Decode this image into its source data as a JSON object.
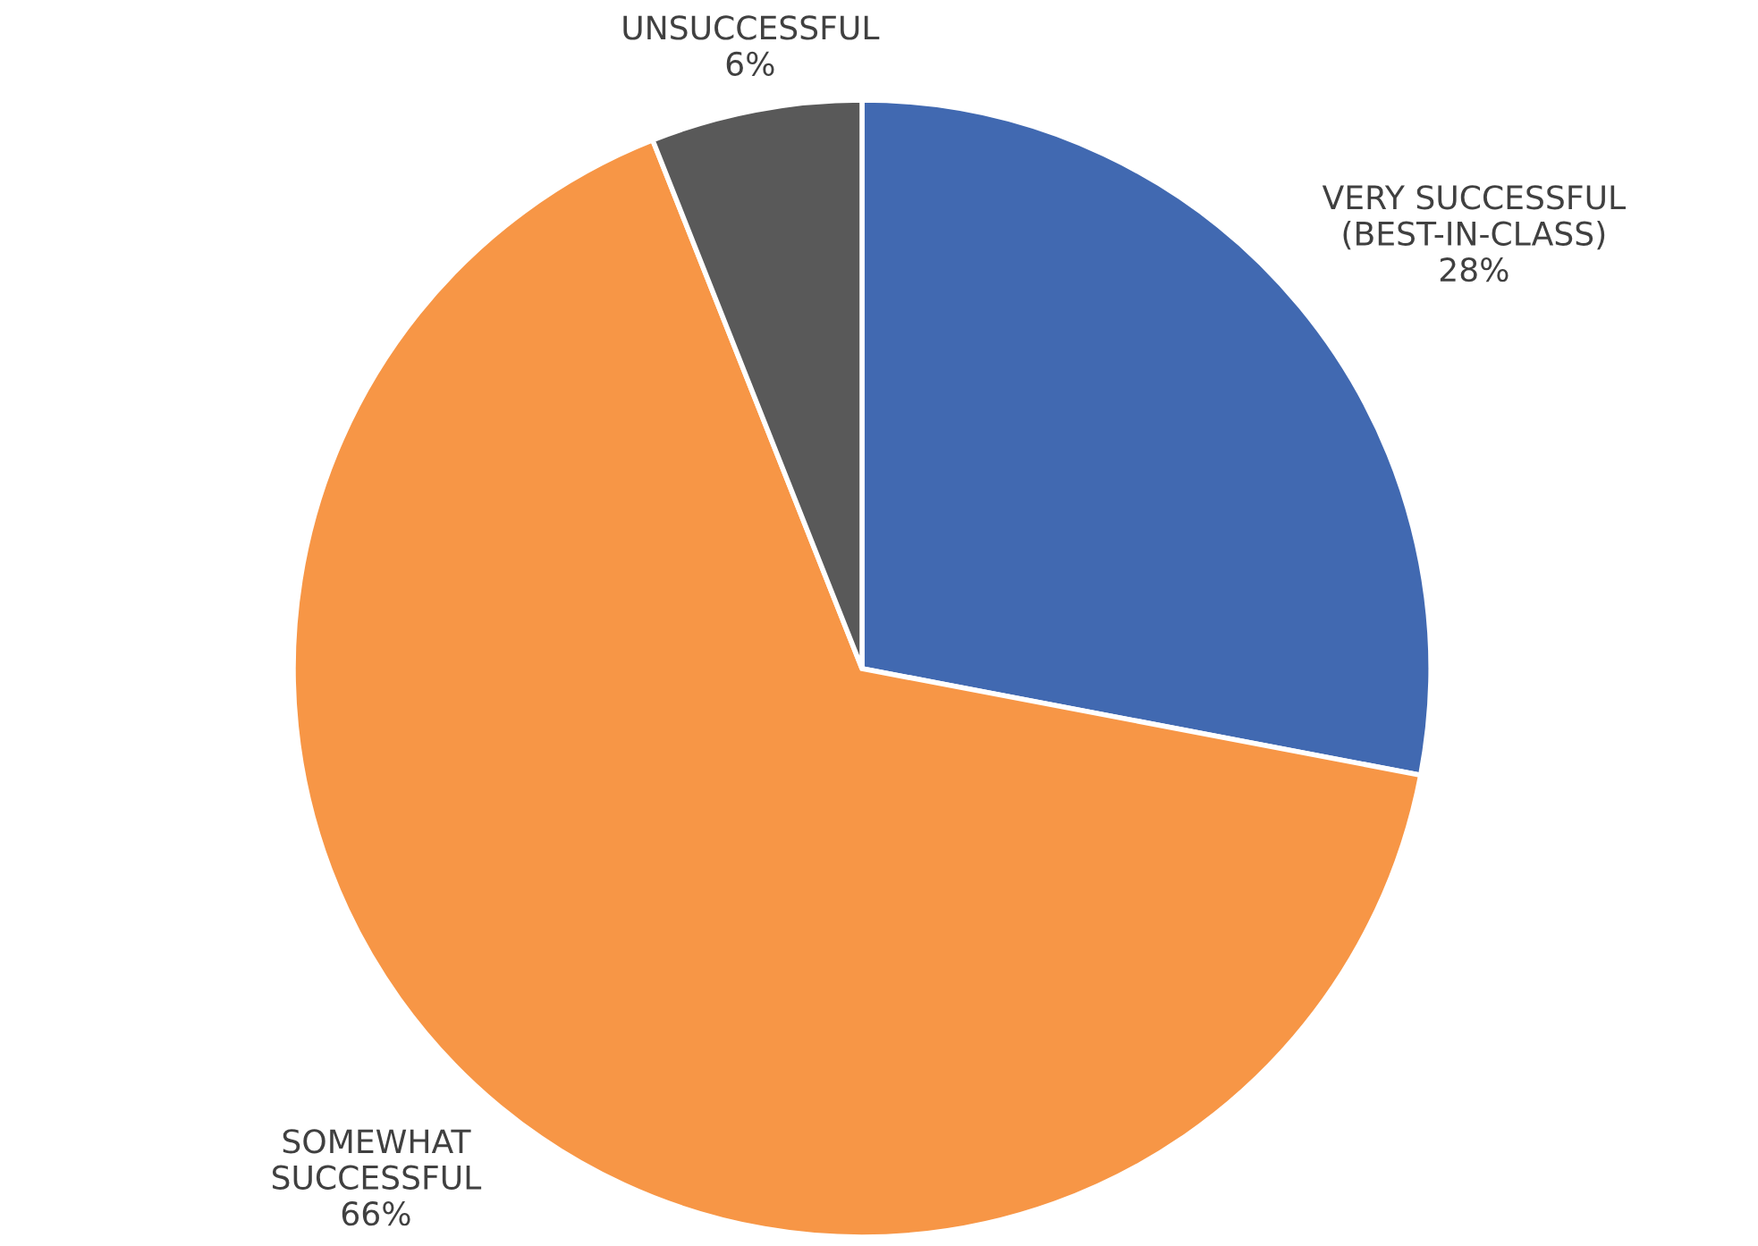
{
  "chart_data": {
    "type": "pie",
    "categories": [
      "VERY SUCCESSFUL\n(BEST-IN-CLASS)",
      "SOMEWHAT\nSUCCESSFUL",
      "UNSUCCESSFUL"
    ],
    "values": [
      28,
      66,
      6
    ],
    "colors": [
      "#4169b1",
      "#f79646",
      "#595959"
    ],
    "value_labels": [
      "28%",
      "66%",
      "6%"
    ]
  }
}
